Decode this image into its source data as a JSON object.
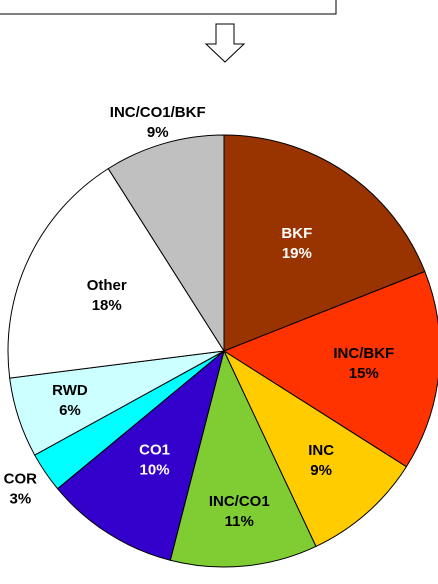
{
  "chart_data": {
    "type": "pie",
    "categories": [
      "BKF",
      "INC/BKF",
      "INC",
      "INC/CO1",
      "CO1",
      "COR",
      "RWD",
      "Other",
      "INC/CO1/BKF"
    ],
    "values": [
      19,
      15,
      9,
      11,
      10,
      3,
      6,
      18,
      9
    ],
    "value_labels": [
      "19%",
      "15%",
      "9%",
      "11%",
      "10%",
      "3%",
      "6%",
      "18%",
      "9%"
    ],
    "colors": [
      "#993300",
      "#ff3300",
      "#ffcc00",
      "#80cc33",
      "#3300cc",
      "#00ffff",
      "#ccffff",
      "#ffffff",
      "#c0c0c0"
    ]
  }
}
